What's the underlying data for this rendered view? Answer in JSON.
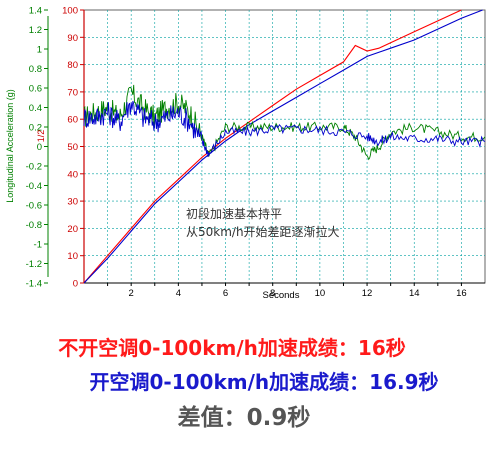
{
  "chart_data": {
    "type": "line",
    "title": "",
    "xlabel": "Seconds",
    "ylabel_left": "Longitudinal Acceleration (g)",
    "ylabel_right_fragment": "1/2",
    "x_range": [
      0,
      17
    ],
    "x_ticks": [
      "2",
      "4",
      "6",
      "8",
      "10",
      "12",
      "14",
      "16"
    ],
    "left_axis_range": [
      -1.4,
      1.4
    ],
    "left_ticks": [
      "1.4",
      "1.2",
      "1",
      "0.8",
      "0.6",
      "0.4",
      "0.2",
      "0",
      "-0.2",
      "-0.4",
      "-0.6",
      "-0.8",
      "-1",
      "-1.2",
      "-1.4"
    ],
    "right_axis_range": [
      0,
      100
    ],
    "right_ticks": [
      "100",
      "90",
      "80",
      "70",
      "60",
      "50",
      "40",
      "30",
      "20",
      "10",
      "0"
    ],
    "grid": true,
    "annotation": [
      "初段加速基本持平",
      "从50km/h开始差距逐渐拉大"
    ],
    "speed_series": [
      {
        "name": "不开空调",
        "color": "#ff0000",
        "x": [
          0,
          1,
          2,
          3,
          4,
          5,
          6,
          7,
          8,
          9,
          10,
          11,
          11.5,
          12,
          12.5,
          13,
          14,
          15,
          16
        ],
        "y": [
          0,
          10,
          20,
          30,
          38,
          46,
          53,
          59,
          65,
          71,
          76,
          81,
          87,
          85,
          86,
          88,
          92,
          96,
          100
        ]
      },
      {
        "name": "开空调",
        "color": "#0000cc",
        "x": [
          0,
          1,
          2,
          3,
          4,
          5,
          6,
          7,
          8,
          9,
          10,
          11,
          12,
          13,
          14,
          15,
          16,
          16.9
        ],
        "y": [
          0,
          9,
          19,
          29,
          37,
          45,
          52,
          58,
          63,
          68,
          73,
          78,
          83,
          86,
          89,
          93,
          97,
          100
        ]
      }
    ],
    "accel_series": [
      {
        "name": "不开空调",
        "color": "#008000",
        "x": [
          0,
          0.5,
          1,
          1.5,
          2,
          2.5,
          3,
          3.5,
          4,
          4.5,
          5,
          5.3,
          6,
          7,
          8,
          9,
          10,
          11,
          11.5,
          12,
          12.5,
          13,
          14,
          15,
          16,
          17
        ],
        "y": [
          0.3,
          0.35,
          0.4,
          0.3,
          0.55,
          0.4,
          0.3,
          0.4,
          0.45,
          0.35,
          0.1,
          -0.1,
          0.2,
          0.2,
          0.2,
          0.2,
          0.2,
          0.2,
          0.1,
          -0.1,
          0.0,
          0.15,
          0.2,
          0.15,
          0.1,
          0.1
        ]
      },
      {
        "name": "开空调",
        "color": "#0000cc",
        "x": [
          0,
          0.5,
          1,
          1.5,
          2,
          2.5,
          3,
          3.5,
          4,
          4.5,
          5,
          5.3,
          6,
          7,
          8,
          9,
          10,
          11,
          12,
          12.5,
          13,
          14,
          15,
          16,
          17
        ],
        "y": [
          0.3,
          0.3,
          0.35,
          0.25,
          0.45,
          0.3,
          0.25,
          0.3,
          0.35,
          0.25,
          0.05,
          -0.08,
          0.15,
          0.15,
          0.18,
          0.18,
          0.17,
          0.15,
          0.1,
          0.05,
          0.1,
          0.08,
          0.08,
          0.05,
          0.05
        ]
      }
    ]
  },
  "captions": {
    "red": "不开空调0-100km/h加速成绩：16秒",
    "blue": "开空调0-100km/h加速成绩：16.9秒",
    "diff": "差值：0.9秒"
  },
  "colors": {
    "red": "#ff0000",
    "blue": "#0000cc",
    "green": "#008000",
    "grid": "#00a0a0",
    "axis_left_label": "#008000",
    "axis_right_label": "#cc0000"
  }
}
